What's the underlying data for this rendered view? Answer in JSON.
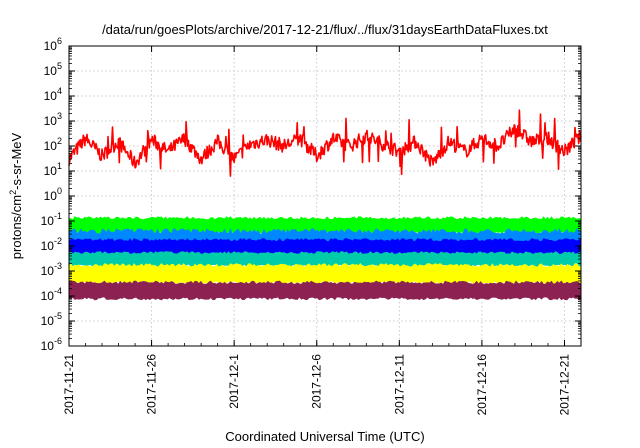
{
  "chart_data": {
    "type": "line",
    "title": "/data/run/goesPlots/archive/2017-12-21/flux/../flux/31daysEarthDataFluxes.txt",
    "xlabel": "Coordinated Universal Time (UTC)",
    "ylabel": {
      "prefix": "protons/cm",
      "sup": "2",
      "suffix": "-s-sr-MeV"
    },
    "yscale": "log",
    "ylim_exponents": [
      -6,
      6
    ],
    "y_ticks": [
      {
        "base": "10",
        "exp": "-6"
      },
      {
        "base": "10",
        "exp": "-5"
      },
      {
        "base": "10",
        "exp": "-4"
      },
      {
        "base": "10",
        "exp": "-3"
      },
      {
        "base": "10",
        "exp": "-2"
      },
      {
        "base": "10",
        "exp": "-1"
      },
      {
        "base": "10",
        "exp": "0"
      },
      {
        "base": "10",
        "exp": "1"
      },
      {
        "base": "10",
        "exp": "2"
      },
      {
        "base": "10",
        "exp": "3"
      },
      {
        "base": "10",
        "exp": "4"
      },
      {
        "base": "10",
        "exp": "5"
      },
      {
        "base": "10",
        "exp": "6"
      }
    ],
    "x_start_date": "2017-11-21",
    "x_end_date": "2017-12-22",
    "x_ticks": [
      "2017-11-21",
      "2017-11-26",
      "2017-12-1",
      "2017-12-6",
      "2017-12-11",
      "2017-12-16",
      "2017-12-21"
    ],
    "grid": true,
    "series": [
      {
        "color": "#ff0000",
        "x": [
          "2017-11-21",
          "2017-11-22",
          "2017-11-23",
          "2017-11-24",
          "2017-11-25",
          "2017-11-26",
          "2017-11-27",
          "2017-11-28",
          "2017-11-29",
          "2017-11-30",
          "2017-12-01",
          "2017-12-02",
          "2017-12-03",
          "2017-12-04",
          "2017-12-05",
          "2017-12-06",
          "2017-12-07",
          "2017-12-08",
          "2017-12-09",
          "2017-12-10",
          "2017-12-11",
          "2017-12-12",
          "2017-12-13",
          "2017-12-14",
          "2017-12-15",
          "2017-12-16",
          "2017-12-17",
          "2017-12-18",
          "2017-12-19",
          "2017-12-20",
          "2017-12-21",
          "2017-12-22"
        ],
        "values": [
          30,
          200,
          40,
          150,
          20,
          180,
          60,
          200,
          30,
          150,
          30,
          120,
          180,
          100,
          200,
          40,
          200,
          100,
          250,
          120,
          60,
          150,
          20,
          150,
          60,
          200,
          100,
          500,
          150,
          200,
          60,
          250
        ]
      },
      {
        "color": "#00ff00",
        "x": [
          "2017-11-21",
          "2017-12-22"
        ],
        "values": [
          0.06,
          0.06
        ],
        "band": [
          0.03,
          0.15
        ]
      },
      {
        "color": "#0088ff",
        "x": [
          "2017-11-21",
          "2017-12-22"
        ],
        "values": [
          0.02,
          0.02
        ],
        "band": [
          0.003,
          0.05
        ]
      },
      {
        "color": "#0000ff",
        "x": [
          "2017-11-21",
          "2017-12-22"
        ],
        "values": [
          0.008,
          0.008
        ],
        "band": [
          0.004,
          0.02
        ]
      },
      {
        "color": "#00ccaa",
        "x": [
          "2017-11-21",
          "2017-12-22"
        ],
        "values": [
          0.003,
          0.003
        ],
        "band": [
          0.0015,
          0.006
        ]
      },
      {
        "color": "#ffff00",
        "x": [
          "2017-11-21",
          "2017-12-22"
        ],
        "values": [
          0.0008,
          0.0008
        ],
        "band": [
          0.0003,
          0.002
        ]
      },
      {
        "color": "#8b2252",
        "x": [
          "2017-11-21",
          "2017-12-22"
        ],
        "values": [
          0.0002,
          0.0002
        ],
        "band": [
          7e-05,
          0.0004
        ]
      }
    ]
  }
}
